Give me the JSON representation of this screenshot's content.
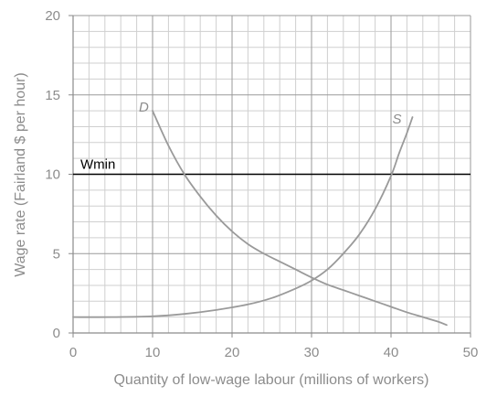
{
  "chart_data": {
    "type": "line",
    "xlabel": "Quantity of low-wage labour (millions of workers)",
    "ylabel": "Wage rate (Fairland $ per hour)",
    "xlim": [
      0,
      50
    ],
    "ylim": [
      0,
      20
    ],
    "x_ticks": [
      "0",
      "10",
      "20",
      "30",
      "40",
      "50"
    ],
    "y_ticks": [
      "0",
      "5",
      "10",
      "15",
      "20"
    ],
    "grid": {
      "minor_step_x": 2,
      "minor_step_y": 1,
      "major_step_x": 10,
      "major_step_y": 5
    },
    "series": [
      {
        "name": "D",
        "color": "#9a9a9a",
        "points": [
          [
            10,
            14
          ],
          [
            12,
            11.8
          ],
          [
            14,
            10
          ],
          [
            16,
            8.6
          ],
          [
            18,
            7.4
          ],
          [
            20,
            6.4
          ],
          [
            22,
            5.6
          ],
          [
            24,
            5.0
          ],
          [
            26,
            4.5
          ],
          [
            28,
            4.0
          ],
          [
            30,
            3.5
          ],
          [
            32,
            3.05
          ],
          [
            34,
            2.7
          ],
          [
            36,
            2.35
          ],
          [
            38,
            2.0
          ],
          [
            40,
            1.65
          ],
          [
            42,
            1.3
          ],
          [
            44,
            1.0
          ],
          [
            46,
            0.7
          ],
          [
            47,
            0.5
          ]
        ]
      },
      {
        "name": "S",
        "color": "#9a9a9a",
        "points": [
          [
            0,
            1.0
          ],
          [
            5,
            1.0
          ],
          [
            10,
            1.05
          ],
          [
            14,
            1.2
          ],
          [
            18,
            1.45
          ],
          [
            22,
            1.8
          ],
          [
            25,
            2.2
          ],
          [
            28,
            2.8
          ],
          [
            30,
            3.3
          ],
          [
            32,
            4.0
          ],
          [
            34,
            5.0
          ],
          [
            36,
            6.2
          ],
          [
            38,
            7.8
          ],
          [
            40,
            9.9
          ],
          [
            41,
            11.3
          ],
          [
            42,
            12.6
          ],
          [
            42.7,
            13.6
          ]
        ]
      }
    ],
    "hlines": [
      {
        "label": "Wmin",
        "y": 10,
        "color": "#000000"
      }
    ]
  }
}
